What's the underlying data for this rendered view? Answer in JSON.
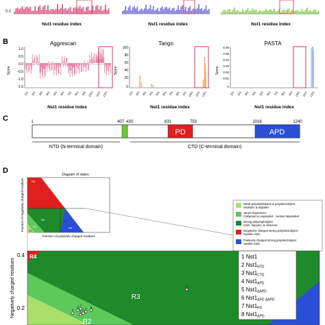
{
  "panel_labels": {
    "B": "B",
    "C": "C",
    "D": "D"
  },
  "top_row": {
    "xlabel": "Nst1 residue index",
    "tick_labels": [
      "101",
      "201",
      "301",
      "401",
      "501",
      "601",
      "701",
      "801",
      "901",
      "1001",
      "1101",
      "1201"
    ],
    "colors": [
      "#e06a93",
      "#7d7de0",
      "#98d46a"
    ],
    "y_tick": "0.0"
  },
  "panel_B": {
    "xlabel": "Nst1 residue index",
    "tick_labels": [
      "101",
      "201",
      "301",
      "401",
      "501",
      "601",
      "701",
      "801",
      "901",
      "1001",
      "1101",
      "1201"
    ],
    "ylabel": "Score",
    "charts": [
      {
        "title": "Aggrescan",
        "color": "#e87ea6",
        "yticks": [
          "1.0",
          "0.5",
          "0.0",
          "-0.5",
          "-1.0",
          "-1.5"
        ]
      },
      {
        "title": "Tango",
        "color": "#f2b37a",
        "yticks": [
          "100",
          "80",
          "60",
          "40",
          "20",
          "0"
        ]
      },
      {
        "title": "PASTA",
        "color": "#9ec3ea",
        "yticks": [
          "0.06",
          "0.05",
          "0.04",
          "0.03",
          "0.02",
          "0.01",
          "0"
        ]
      }
    ]
  },
  "panel_C": {
    "numbers": {
      "n1": "1",
      "n407": "407",
      "n430": "430",
      "n631": "631",
      "n753": "753",
      "n1016": "1016",
      "n1240": "1240"
    },
    "pd_label": "PD",
    "apd_label": "APD",
    "ntd_label": "NTD (N-terminal domain)",
    "ctd_label": "CTD (C-terminal domain)",
    "colors": {
      "linker": "#66cc33",
      "pd": "#e01f1f",
      "apd": "#2a4fd6"
    }
  },
  "panel_D": {
    "inset": {
      "title": "Diagram of states",
      "ylabel": "Fraction of negatively charged residues",
      "xlabel": "Fraction of positively charged residues",
      "region_labels": {
        "r1": "R1",
        "r2": "R2",
        "r3": "R3",
        "r4": "R4",
        "r5": "R5"
      }
    },
    "legend": [
      {
        "color": "#a8e06a",
        "line1": "Weak polyampholytes & polyelectrolytes:",
        "line2": "Globules & tadpoles"
      },
      {
        "color": "#5cc95c",
        "line1": "Janus sequences:",
        "line2": "Collapsed or expanded - context dependent"
      },
      {
        "color": "#1f8a2a",
        "line1": "Strong polyampholytes:",
        "line2": "Coils, hairpins, & chimeras"
      },
      {
        "color": "#e01f1f",
        "line1": "Negatively charged strong polyelectrolytes:",
        "line2": "Swollen coils"
      },
      {
        "color": "#2a4fd6",
        "line1": "Positively charged strong polyelectrolytes:",
        "line2": "Swollen coils"
      }
    ],
    "main": {
      "ylabel": "Negatively charged residues",
      "yticks": [
        "0.4",
        "0.2"
      ],
      "region_labels": {
        "r3": "R3",
        "r4": "R4",
        "r2": "R2"
      },
      "point_labels": [
        "7",
        "4",
        "8",
        "2",
        "3",
        "5",
        "6"
      ]
    },
    "sample_list": [
      {
        "num": "1",
        "name": "Nst1",
        "sub": ""
      },
      {
        "num": "2",
        "name": "Nst1",
        "sub": "NTD"
      },
      {
        "num": "3",
        "name": "Nst1",
        "sub": "CTD"
      },
      {
        "num": "4",
        "name": "Nst1",
        "sub": "APD"
      },
      {
        "num": "5",
        "name": "Nst1",
        "sub": "ΔAPD"
      },
      {
        "num": "6",
        "name": "Nst1",
        "sub": "ΔPD ΔAPD"
      },
      {
        "num": "7",
        "name": "Nst1",
        "sub": "PD"
      },
      {
        "num": "8",
        "name": "Nst1",
        "sub": "ΔPD"
      }
    ]
  },
  "chart_data": [
    {
      "type": "bar",
      "panel": "A (cropped)",
      "xlabel": "Nst1 residue index",
      "categories": [
        "101",
        "201",
        "301",
        "401",
        "501",
        "601",
        "701",
        "801",
        "901",
        "1001",
        "1101",
        "1201"
      ],
      "series": [
        {
          "values": [
            0.3,
            0.5,
            0.4,
            0.6,
            0.5,
            0.45,
            0.55,
            0.5,
            0.4,
            0.6,
            0.5,
            0.45
          ]
        },
        {
          "values": [
            0.4,
            0.35,
            0.5,
            0.45,
            0.55,
            0.5,
            0.4,
            0.5,
            0.45,
            0.55,
            0.5,
            0.4
          ]
        },
        {
          "values": [
            0.2,
            0.3,
            0.25,
            0.3,
            0.35,
            0.3,
            0.25,
            0.3,
            0.35,
            0.3,
            0.25,
            0.3
          ]
        }
      ]
    },
    {
      "type": "area",
      "title": "Aggrescan",
      "xlabel": "Nst1 residue index",
      "ylabel": "Score",
      "ylim": [
        -1.5,
        1.0
      ],
      "categories": [
        "101",
        "201",
        "301",
        "401",
        "501",
        "601",
        "701",
        "801",
        "901",
        "1001",
        "1101",
        "1201"
      ],
      "values": [
        -0.3,
        0.2,
        -0.6,
        -0.2,
        -0.4,
        0.1,
        -0.5,
        -0.3,
        -0.2,
        0.3,
        0.6,
        -0.4
      ]
    },
    {
      "type": "bar",
      "title": "Tango",
      "xlabel": "Nst1 residue index",
      "ylabel": "Score",
      "ylim": [
        0,
        100
      ],
      "x": [
        150,
        175,
        330,
        355,
        1130,
        1150,
        1160,
        1170
      ],
      "values": [
        30,
        12,
        10,
        6,
        20,
        75,
        60,
        40
      ]
    },
    {
      "type": "bar",
      "title": "PASTA",
      "xlabel": "Nst1 residue index",
      "ylabel": "Score",
      "ylim": [
        0,
        0.06
      ],
      "x": [
        1140,
        1150,
        1160
      ],
      "values": [
        0.058,
        0.06,
        0.055
      ]
    },
    {
      "type": "scatter",
      "title": "Diagram of states",
      "ylabel": "Negatively charged residues",
      "ylim": [
        0.15,
        0.4
      ],
      "points": [
        {
          "label": "1",
          "x": 0.3,
          "y": 0.27
        },
        {
          "label": "7",
          "x": 0.1,
          "y": 0.205
        },
        {
          "label": "4",
          "x": 0.085,
          "y": 0.19
        },
        {
          "label": "8",
          "x": 0.095,
          "y": 0.2
        },
        {
          "label": "2",
          "x": 0.1,
          "y": 0.185
        },
        {
          "label": "3",
          "x": 0.11,
          "y": 0.195
        },
        {
          "label": "5",
          "x": 0.105,
          "y": 0.19
        },
        {
          "label": "6",
          "x": 0.12,
          "y": 0.2
        }
      ]
    }
  ]
}
